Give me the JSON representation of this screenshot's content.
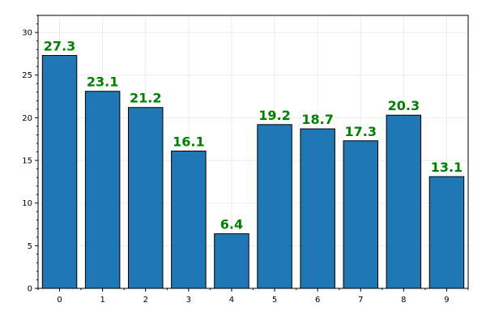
{
  "chart_data": {
    "type": "bar",
    "title": "",
    "xlabel": "",
    "ylabel": "",
    "categories": [
      "0",
      "1",
      "2",
      "3",
      "4",
      "5",
      "6",
      "7",
      "8",
      "9"
    ],
    "values": [
      27.3,
      23.1,
      21.2,
      16.1,
      6.4,
      19.2,
      18.7,
      17.3,
      20.3,
      13.1
    ],
    "data_labels": [
      "27.3",
      "23.1",
      "21.2",
      "16.1",
      "6.4",
      "19.2",
      "18.7",
      "17.3",
      "20.3",
      "13.1"
    ],
    "ylim": [
      0,
      32
    ],
    "yticks": [
      0,
      5,
      10,
      15,
      20,
      25,
      30
    ],
    "y_minor_step": 1,
    "grid": true,
    "legend": "none",
    "colors": {
      "bar_fill": "#1f77b4",
      "bar_edge": "#000000",
      "data_label": "#008000",
      "grid": "#ebebeb",
      "axis": "#000000"
    }
  }
}
